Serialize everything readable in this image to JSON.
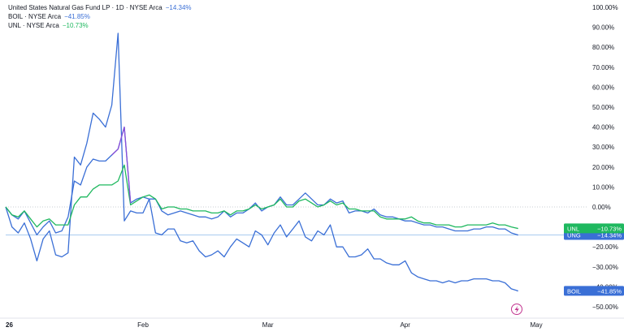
{
  "legend": {
    "main_title": "United States Natural Gas Fund LP · 1D · NYSE Arca",
    "main_change": "−14.34%",
    "boil_title": "BOIL · NYSE Arca",
    "boil_change": "−41.85%",
    "unl_title": "UNL · NYSE Arca",
    "unl_change": "−10.73%"
  },
  "colors": {
    "ung": "#3a6fd6",
    "boil": "#3a6fd6",
    "unl": "#1fb85f",
    "boil_spike": "#8b4fd8",
    "zero_line": "#c9ccd3",
    "ung_level_line": "#9cc3ee",
    "axis_text": "#131722",
    "lightning_icon": "#c2348f"
  },
  "chart_data": {
    "type": "line",
    "title": "United States Natural Gas Fund LP · 1D · NYSE Arca",
    "xlabel": "",
    "ylabel": "",
    "ylim": [
      -55,
      100
    ],
    "xlim": [
      0,
      82
    ],
    "grid": false,
    "legend_position": "top-left",
    "x_ticks": [
      {
        "label": "26",
        "x": 0
      },
      {
        "label": "Feb",
        "x": 22
      },
      {
        "label": "Mar",
        "x": 42
      },
      {
        "label": "Apr",
        "x": 64
      },
      {
        "label": "May",
        "x": 85
      }
    ],
    "y_ticks": [
      {
        "v": 100,
        "label": "100.00%"
      },
      {
        "v": 90,
        "label": "90.00%"
      },
      {
        "v": 80,
        "label": "80.00%"
      },
      {
        "v": 70,
        "label": "70.00%"
      },
      {
        "v": 60,
        "label": "60.00%"
      },
      {
        "v": 50,
        "label": "50.00%"
      },
      {
        "v": 40,
        "label": "40.00%"
      },
      {
        "v": 30,
        "label": "30.00%"
      },
      {
        "v": 20,
        "label": "20.00%"
      },
      {
        "v": 10,
        "label": "10.00%"
      },
      {
        "v": 0,
        "label": "0.00%"
      },
      {
        "v": -10,
        "label": "−10.00%"
      },
      {
        "v": -20,
        "label": "−20.00%"
      },
      {
        "v": -30,
        "label": "−30.00%"
      },
      {
        "v": -40,
        "label": "−40.00%"
      },
      {
        "v": -50,
        "label": "−50.00%"
      }
    ],
    "series": [
      {
        "name": "UNG",
        "tag": "UNG",
        "last_label": "−14.34%",
        "values": [
          0,
          -4,
          -6,
          -2,
          -8,
          -14,
          -10,
          -7,
          -13,
          -12,
          -5,
          13,
          11,
          20,
          24,
          23,
          23,
          26,
          29,
          40,
          2,
          4,
          5,
          4,
          4,
          -2,
          -4,
          -3,
          -2,
          -3,
          -4,
          -5,
          -5,
          -6,
          -5,
          -2,
          -5,
          -3,
          -3,
          -1,
          2,
          -2,
          0,
          1,
          5,
          1,
          1,
          4,
          7,
          4,
          1,
          1,
          4,
          2,
          3,
          -3,
          -2,
          -2,
          -3,
          -1,
          -4,
          -5,
          -5,
          -6,
          -7,
          -7,
          -8,
          -9,
          -9,
          -10,
          -10,
          -11,
          -12,
          -12,
          -12,
          -11,
          -11,
          -10,
          -10,
          -11,
          -11,
          -13,
          -14
        ]
      },
      {
        "name": "BOIL",
        "tag": "BOIL",
        "last_label": "−41.85%",
        "values": [
          0,
          -10,
          -13,
          -8,
          -16,
          -27,
          -16,
          -12,
          -24,
          -25,
          -23,
          25,
          21,
          32,
          47,
          44,
          40,
          51,
          87,
          -7,
          -2,
          -3,
          -3,
          4,
          -13,
          -14,
          -11,
          -11,
          -17,
          -18,
          -17,
          -22,
          -25,
          -24,
          -22,
          -25,
          -20,
          -16,
          -18,
          -20,
          -12,
          -14,
          -19,
          -13,
          -9,
          -15,
          -11,
          -7,
          -15,
          -17,
          -12,
          -14,
          -9,
          -20,
          -20,
          -25,
          -25,
          -24,
          -21,
          -26,
          -26,
          -28,
          -29,
          -29,
          -27,
          -33,
          -35,
          -36,
          -37,
          -37,
          -38,
          -37,
          -38,
          -37,
          -37,
          -36,
          -36,
          -36,
          -37,
          -37,
          -38,
          -41,
          -42
        ]
      },
      {
        "name": "UNL",
        "tag": "UNL",
        "last_label": "−10.73%",
        "values": [
          0,
          -4,
          -5,
          -2,
          -6,
          -10,
          -7,
          -6,
          -9,
          -9,
          -9,
          1,
          5,
          5,
          9,
          11,
          11,
          11,
          13,
          21,
          1,
          3,
          5,
          6,
          4,
          -1,
          0,
          0,
          -1,
          -1,
          -2,
          -2,
          -2,
          -3,
          -3,
          -2,
          -4,
          -2,
          -2,
          -1,
          1,
          -1,
          0,
          1,
          4,
          0,
          0,
          3,
          4,
          2,
          0,
          1,
          3,
          1,
          2,
          -1,
          -1,
          -2,
          -2,
          -2,
          -5,
          -6,
          -6,
          -6,
          -6,
          -5,
          -7,
          -8,
          -8,
          -9,
          -9,
          -9,
          -10,
          -10,
          -9,
          -9,
          -9,
          -9,
          -8,
          -9,
          -9,
          -10,
          -10.73
        ]
      }
    ]
  }
}
